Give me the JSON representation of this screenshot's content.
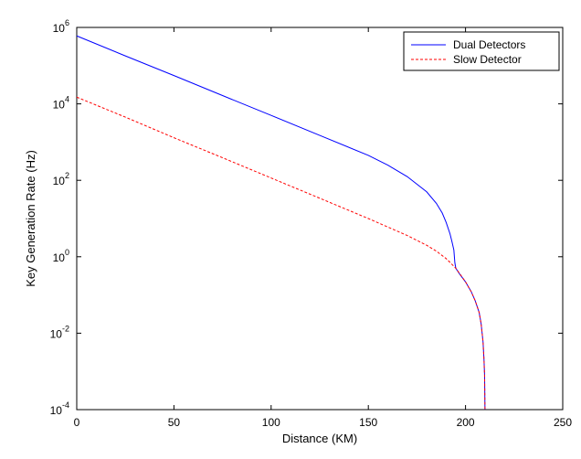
{
  "chart_data": {
    "type": "line",
    "title": "",
    "xlabel": "Distance (KM)",
    "ylabel": "Key Generation Rate (Hz)",
    "xlim": [
      0,
      250
    ],
    "ylim": [
      0.0001,
      1000000
    ],
    "yscale": "log",
    "grid": false,
    "legend_position": "top-right",
    "x_ticks": [
      "0",
      "50",
      "100",
      "150",
      "200",
      "250"
    ],
    "y_ticks": [
      {
        "base": "10",
        "exp": "-4",
        "value": 0.0001
      },
      {
        "base": "10",
        "exp": "-2",
        "value": 0.01
      },
      {
        "base": "10",
        "exp": "0",
        "value": 1
      },
      {
        "base": "10",
        "exp": "2",
        "value": 100
      },
      {
        "base": "10",
        "exp": "4",
        "value": 10000
      },
      {
        "base": "10",
        "exp": "6",
        "value": 1000000
      }
    ],
    "series": [
      {
        "name": "Dual Detectors",
        "color": "#0000ff",
        "style": "solid",
        "x": [
          0,
          25,
          50,
          75,
          100,
          125,
          150,
          160,
          170,
          180,
          185,
          188,
          190,
          192,
          193,
          194,
          194.5,
          195,
          197,
          200,
          203,
          205,
          207,
          208,
          209,
          209.5,
          209.8,
          210
        ],
        "y": [
          600000,
          180000,
          55000,
          16500,
          5000,
          1500,
          450,
          250,
          125,
          50,
          25,
          14,
          8,
          4,
          2.5,
          1.5,
          0.7,
          0.5,
          0.35,
          0.22,
          0.12,
          0.07,
          0.035,
          0.018,
          0.006,
          0.002,
          0.0008,
          0.0001
        ]
      },
      {
        "name": "Slow Detector",
        "color": "#ff0000",
        "style": "dashed",
        "x": [
          0,
          25,
          50,
          75,
          100,
          125,
          150,
          160,
          170,
          180,
          185,
          190,
          195,
          200,
          203,
          205,
          207,
          208,
          209,
          209.5,
          209.8,
          210
        ],
        "y": [
          15000,
          4500,
          1300,
          390,
          115,
          34,
          10,
          6,
          3.6,
          2,
          1.4,
          0.9,
          0.5,
          0.22,
          0.12,
          0.07,
          0.035,
          0.018,
          0.006,
          0.002,
          0.0008,
          0.0001
        ]
      }
    ]
  }
}
